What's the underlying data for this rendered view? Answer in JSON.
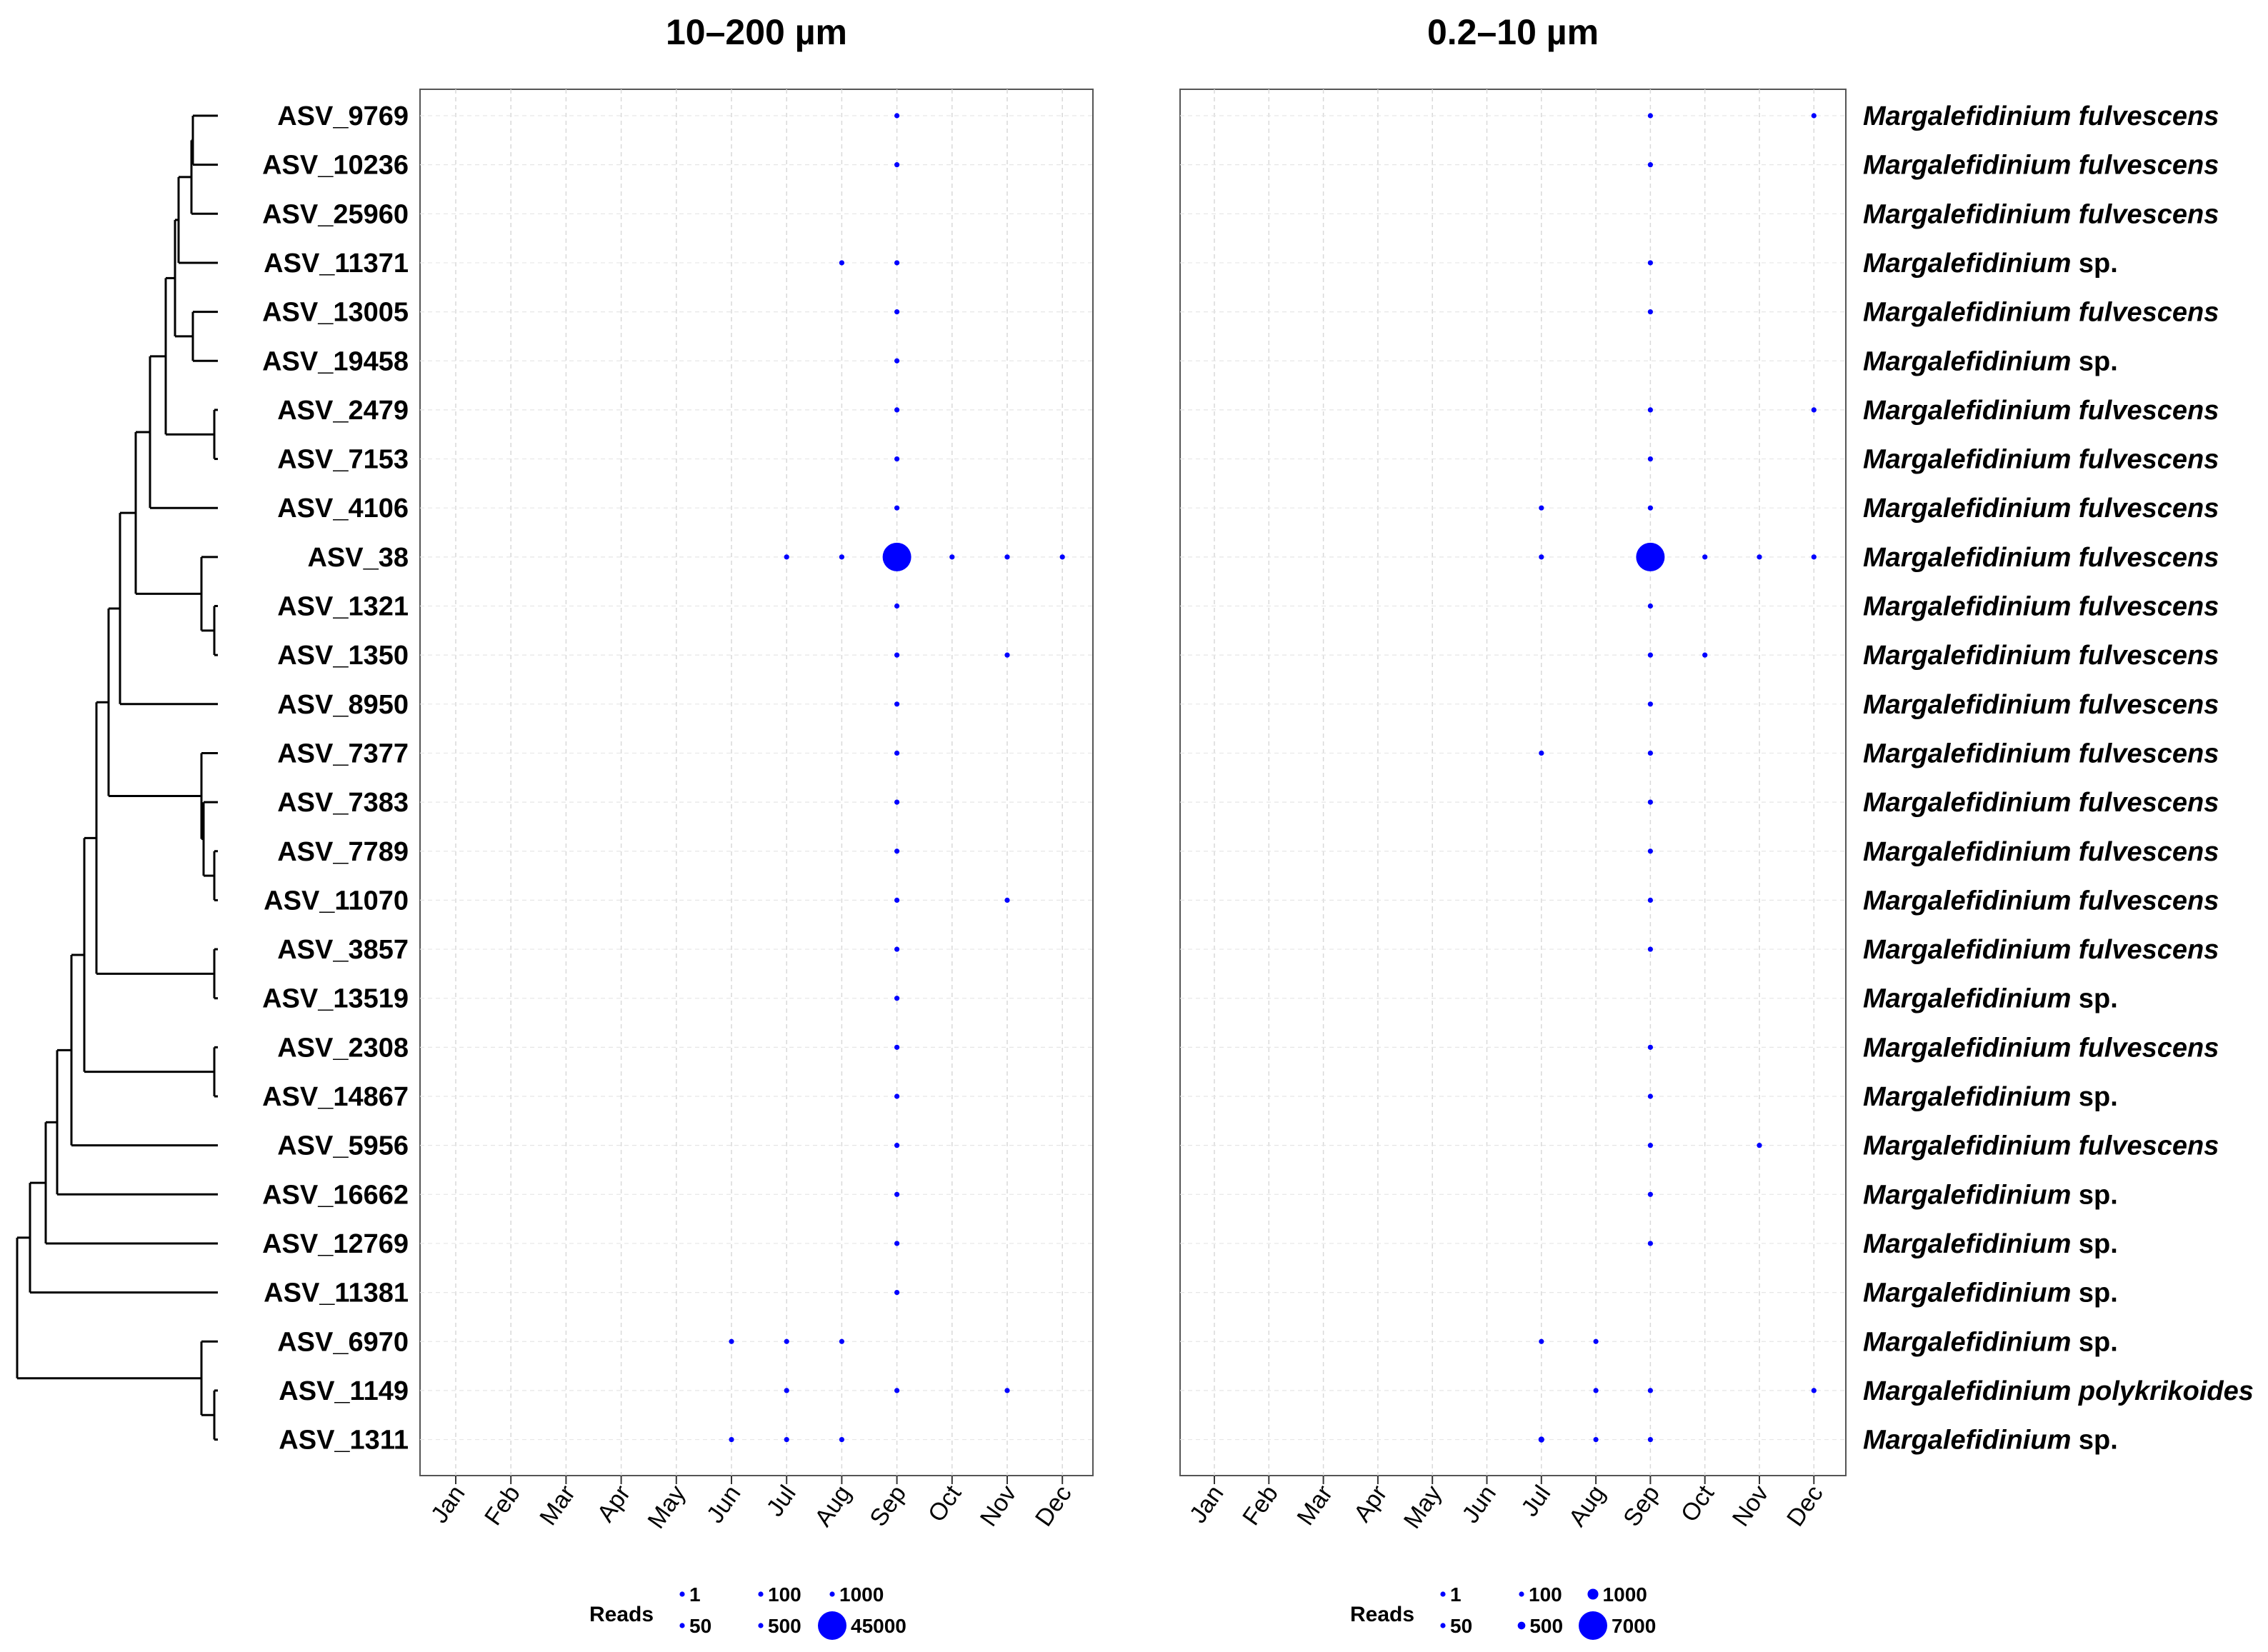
{
  "chart_data": {
    "type": "scatter",
    "size_legend_title": "Reads",
    "months": [
      "Jan",
      "Feb",
      "Mar",
      "Apr",
      "May",
      "Jun",
      "Jul",
      "Aug",
      "Sep",
      "Oct",
      "Nov",
      "Dec"
    ],
    "asvs": [
      "ASV_9769",
      "ASV_10236",
      "ASV_25960",
      "ASV_11371",
      "ASV_13005",
      "ASV_19458",
      "ASV_2479",
      "ASV_7153",
      "ASV_4106",
      "ASV_38",
      "ASV_1321",
      "ASV_1350",
      "ASV_8950",
      "ASV_7377",
      "ASV_7383",
      "ASV_7789",
      "ASV_11070",
      "ASV_3857",
      "ASV_13519",
      "ASV_2308",
      "ASV_14867",
      "ASV_5956",
      "ASV_16662",
      "ASV_12769",
      "ASV_11381",
      "ASV_6970",
      "ASV_1149",
      "ASV_1311"
    ],
    "taxa": [
      {
        "genus": "Margalefidinium",
        "epithet": "fulvescens"
      },
      {
        "genus": "Margalefidinium",
        "epithet": "fulvescens"
      },
      {
        "genus": "Margalefidinium",
        "epithet": "fulvescens"
      },
      {
        "genus": "Margalefidinium",
        "epithet": "sp."
      },
      {
        "genus": "Margalefidinium",
        "epithet": "fulvescens"
      },
      {
        "genus": "Margalefidinium",
        "epithet": "sp."
      },
      {
        "genus": "Margalefidinium",
        "epithet": "fulvescens"
      },
      {
        "genus": "Margalefidinium",
        "epithet": "fulvescens"
      },
      {
        "genus": "Margalefidinium",
        "epithet": "fulvescens"
      },
      {
        "genus": "Margalefidinium",
        "epithet": "fulvescens"
      },
      {
        "genus": "Margalefidinium",
        "epithet": "fulvescens"
      },
      {
        "genus": "Margalefidinium",
        "epithet": "fulvescens"
      },
      {
        "genus": "Margalefidinium",
        "epithet": "fulvescens"
      },
      {
        "genus": "Margalefidinium",
        "epithet": "fulvescens"
      },
      {
        "genus": "Margalefidinium",
        "epithet": "fulvescens"
      },
      {
        "genus": "Margalefidinium",
        "epithet": "fulvescens"
      },
      {
        "genus": "Margalefidinium",
        "epithet": "fulvescens"
      },
      {
        "genus": "Margalefidinium",
        "epithet": "fulvescens"
      },
      {
        "genus": "Margalefidinium",
        "epithet": "sp."
      },
      {
        "genus": "Margalefidinium",
        "epithet": "fulvescens"
      },
      {
        "genus": "Margalefidinium",
        "epithet": "sp."
      },
      {
        "genus": "Margalefidinium",
        "epithet": "fulvescens"
      },
      {
        "genus": "Margalefidinium",
        "epithet": "sp."
      },
      {
        "genus": "Margalefidinium",
        "epithet": "sp."
      },
      {
        "genus": "Margalefidinium",
        "epithet": "sp."
      },
      {
        "genus": "Margalefidinium",
        "epithet": "sp."
      },
      {
        "genus": "Margalefidinium",
        "epithet": "polykrikoides"
      },
      {
        "genus": "Margalefidinium",
        "epithet": "sp."
      }
    ],
    "dot_color": "#0000ff",
    "panels": [
      {
        "title": "10–200 µm",
        "legend_breaks": [
          1,
          100,
          1000,
          50,
          500,
          45000
        ],
        "legend_labels": [
          "1",
          "100",
          "1000",
          "50",
          "500",
          "45000"
        ],
        "points": [
          {
            "asv": "ASV_9769",
            "month": "Sep",
            "reads": 5
          },
          {
            "asv": "ASV_10236",
            "month": "Sep",
            "reads": 5
          },
          {
            "asv": "ASV_11371",
            "month": "Aug",
            "reads": 5
          },
          {
            "asv": "ASV_11371",
            "month": "Sep",
            "reads": 5
          },
          {
            "asv": "ASV_13005",
            "month": "Sep",
            "reads": 5
          },
          {
            "asv": "ASV_19458",
            "month": "Sep",
            "reads": 5
          },
          {
            "asv": "ASV_2479",
            "month": "Sep",
            "reads": 20
          },
          {
            "asv": "ASV_7153",
            "month": "Sep",
            "reads": 5
          },
          {
            "asv": "ASV_4106",
            "month": "Sep",
            "reads": 10
          },
          {
            "asv": "ASV_38",
            "month": "Jul",
            "reads": 5
          },
          {
            "asv": "ASV_38",
            "month": "Aug",
            "reads": 10
          },
          {
            "asv": "ASV_38",
            "month": "Sep",
            "reads": 45000
          },
          {
            "asv": "ASV_38",
            "month": "Oct",
            "reads": 5
          },
          {
            "asv": "ASV_38",
            "month": "Nov",
            "reads": 10
          },
          {
            "asv": "ASV_38",
            "month": "Dec",
            "reads": 5
          },
          {
            "asv": "ASV_1321",
            "month": "Sep",
            "reads": 30
          },
          {
            "asv": "ASV_1350",
            "month": "Sep",
            "reads": 30
          },
          {
            "asv": "ASV_1350",
            "month": "Nov",
            "reads": 5
          },
          {
            "asv": "ASV_8950",
            "month": "Sep",
            "reads": 5
          },
          {
            "asv": "ASV_7377",
            "month": "Sep",
            "reads": 5
          },
          {
            "asv": "ASV_7383",
            "month": "Sep",
            "reads": 5
          },
          {
            "asv": "ASV_7789",
            "month": "Sep",
            "reads": 5
          },
          {
            "asv": "ASV_11070",
            "month": "Sep",
            "reads": 5
          },
          {
            "asv": "ASV_11070",
            "month": "Nov",
            "reads": 10
          },
          {
            "asv": "ASV_3857",
            "month": "Sep",
            "reads": 10
          },
          {
            "asv": "ASV_13519",
            "month": "Sep",
            "reads": 5
          },
          {
            "asv": "ASV_2308",
            "month": "Sep",
            "reads": 20
          },
          {
            "asv": "ASV_14867",
            "month": "Sep",
            "reads": 5
          },
          {
            "asv": "ASV_5956",
            "month": "Sep",
            "reads": 5
          },
          {
            "asv": "ASV_16662",
            "month": "Sep",
            "reads": 5
          },
          {
            "asv": "ASV_12769",
            "month": "Sep",
            "reads": 5
          },
          {
            "asv": "ASV_11381",
            "month": "Sep",
            "reads": 5
          },
          {
            "asv": "ASV_6970",
            "month": "Jun",
            "reads": 5
          },
          {
            "asv": "ASV_6970",
            "month": "Jul",
            "reads": 10
          },
          {
            "asv": "ASV_6970",
            "month": "Aug",
            "reads": 5
          },
          {
            "asv": "ASV_1149",
            "month": "Jul",
            "reads": 5
          },
          {
            "asv": "ASV_1149",
            "month": "Sep",
            "reads": 30
          },
          {
            "asv": "ASV_1149",
            "month": "Nov",
            "reads": 5
          },
          {
            "asv": "ASV_1311",
            "month": "Jun",
            "reads": 5
          },
          {
            "asv": "ASV_1311",
            "month": "Jul",
            "reads": 50
          },
          {
            "asv": "ASV_1311",
            "month": "Aug",
            "reads": 20
          }
        ]
      },
      {
        "title": "0.2–10 µm",
        "legend_breaks": [
          1,
          100,
          1000,
          50,
          500,
          7000
        ],
        "legend_labels": [
          "1",
          "100",
          "1000",
          "50",
          "500",
          "7000"
        ],
        "points": [
          {
            "asv": "ASV_9769",
            "month": "Sep",
            "reads": 5
          },
          {
            "asv": "ASV_9769",
            "month": "Dec",
            "reads": 5
          },
          {
            "asv": "ASV_10236",
            "month": "Sep",
            "reads": 5
          },
          {
            "asv": "ASV_11371",
            "month": "Sep",
            "reads": 10
          },
          {
            "asv": "ASV_13005",
            "month": "Sep",
            "reads": 10
          },
          {
            "asv": "ASV_2479",
            "month": "Sep",
            "reads": 30
          },
          {
            "asv": "ASV_2479",
            "month": "Dec",
            "reads": 5
          },
          {
            "asv": "ASV_7153",
            "month": "Sep",
            "reads": 10
          },
          {
            "asv": "ASV_4106",
            "month": "Jul",
            "reads": 5
          },
          {
            "asv": "ASV_4106",
            "month": "Sep",
            "reads": 10
          },
          {
            "asv": "ASV_38",
            "month": "Jul",
            "reads": 10
          },
          {
            "asv": "ASV_38",
            "month": "Sep",
            "reads": 7000
          },
          {
            "asv": "ASV_38",
            "month": "Oct",
            "reads": 10
          },
          {
            "asv": "ASV_38",
            "month": "Nov",
            "reads": 20
          },
          {
            "asv": "ASV_38",
            "month": "Dec",
            "reads": 30
          },
          {
            "asv": "ASV_1321",
            "month": "Sep",
            "reads": 30
          },
          {
            "asv": "ASV_1350",
            "month": "Sep",
            "reads": 100
          },
          {
            "asv": "ASV_1350",
            "month": "Oct",
            "reads": 10
          },
          {
            "asv": "ASV_8950",
            "month": "Sep",
            "reads": 5
          },
          {
            "asv": "ASV_7377",
            "month": "Jul",
            "reads": 5
          },
          {
            "asv": "ASV_7377",
            "month": "Sep",
            "reads": 10
          },
          {
            "asv": "ASV_7383",
            "month": "Sep",
            "reads": 5
          },
          {
            "asv": "ASV_7789",
            "month": "Sep",
            "reads": 10
          },
          {
            "asv": "ASV_11070",
            "month": "Sep",
            "reads": 10
          },
          {
            "asv": "ASV_3857",
            "month": "Sep",
            "reads": 20
          },
          {
            "asv": "ASV_2308",
            "month": "Sep",
            "reads": 30
          },
          {
            "asv": "ASV_14867",
            "month": "Sep",
            "reads": 5
          },
          {
            "asv": "ASV_5956",
            "month": "Sep",
            "reads": 10
          },
          {
            "asv": "ASV_5956",
            "month": "Nov",
            "reads": 5
          },
          {
            "asv": "ASV_16662",
            "month": "Sep",
            "reads": 5
          },
          {
            "asv": "ASV_12769",
            "month": "Sep",
            "reads": 5
          },
          {
            "asv": "ASV_6970",
            "month": "Jul",
            "reads": 10
          },
          {
            "asv": "ASV_6970",
            "month": "Aug",
            "reads": 20
          },
          {
            "asv": "ASV_1149",
            "month": "Aug",
            "reads": 5
          },
          {
            "asv": "ASV_1149",
            "month": "Sep",
            "reads": 200
          },
          {
            "asv": "ASV_1149",
            "month": "Dec",
            "reads": 5
          },
          {
            "asv": "ASV_1311",
            "month": "Jul",
            "reads": 300
          },
          {
            "asv": "ASV_1311",
            "month": "Aug",
            "reads": 50
          },
          {
            "asv": "ASV_1311",
            "month": "Sep",
            "reads": 10
          }
        ]
      }
    ]
  }
}
